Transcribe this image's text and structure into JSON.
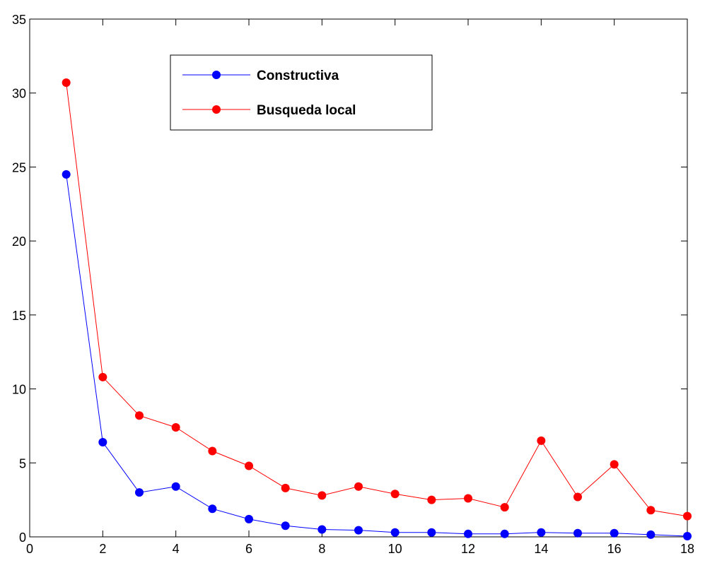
{
  "chart_data": {
    "type": "line",
    "title": "",
    "xlabel": "",
    "ylabel": "",
    "xlim": [
      0,
      18
    ],
    "ylim": [
      0,
      35
    ],
    "xticks": [
      0,
      2,
      4,
      6,
      8,
      10,
      12,
      14,
      16,
      18
    ],
    "yticks": [
      0,
      5,
      10,
      15,
      20,
      25,
      30,
      35
    ],
    "grid": false,
    "legend_position": "top-center",
    "x": [
      1,
      2,
      3,
      4,
      5,
      6,
      7,
      8,
      9,
      10,
      11,
      12,
      13,
      14,
      15,
      16,
      17,
      18
    ],
    "series": [
      {
        "name": "Constructiva",
        "color": "#0000ff",
        "marker": "circle",
        "values": [
          24.5,
          6.4,
          3.0,
          3.4,
          1.9,
          1.2,
          0.75,
          0.5,
          0.45,
          0.3,
          0.3,
          0.2,
          0.2,
          0.3,
          0.25,
          0.25,
          0.15,
          0.05
        ]
      },
      {
        "name": "Busqueda local",
        "color": "#ff0000",
        "marker": "circle",
        "values": [
          30.7,
          10.8,
          8.2,
          7.4,
          5.8,
          4.8,
          3.3,
          2.8,
          3.4,
          2.9,
          2.5,
          2.6,
          2.0,
          6.5,
          2.7,
          4.9,
          1.8,
          1.4
        ]
      }
    ]
  }
}
